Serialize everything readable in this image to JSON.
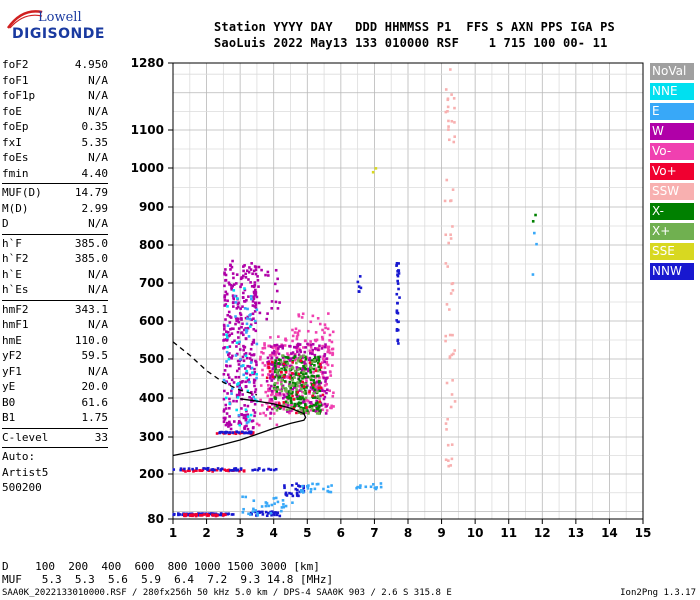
{
  "logo": {
    "line1": "Lowell",
    "line2": "DIGISONDE"
  },
  "header": {
    "line1": "Station YYYY DAY   DDD HHMMSS P1  FFS S AXN PPS IGA PS",
    "line2": "SaoLuis 2022 May13 133 010000 RSF    1 715 100 00- 11"
  },
  "params": [
    {
      "label": "foF2",
      "value": "4.950"
    },
    {
      "label": "foF1",
      "value": "N/A"
    },
    {
      "label": "foF1p",
      "value": "N/A"
    },
    {
      "label": "foE",
      "value": "N/A"
    },
    {
      "label": "foEp",
      "value": "0.35"
    },
    {
      "label": "fxI",
      "value": "5.35"
    },
    {
      "label": "foEs",
      "value": "N/A"
    },
    {
      "label": "fmin",
      "value": "4.40"
    },
    {
      "sep": true
    },
    {
      "label": "MUF(D)",
      "value": "14.79"
    },
    {
      "label": "M(D)",
      "value": "2.99"
    },
    {
      "label": "D",
      "value": "N/A"
    },
    {
      "sep": true
    },
    {
      "label": "h`F",
      "value": "385.0"
    },
    {
      "label": "h`F2",
      "value": "385.0"
    },
    {
      "label": "h`E",
      "value": "N/A"
    },
    {
      "label": "h`Es",
      "value": "N/A"
    },
    {
      "sep": true
    },
    {
      "label": "hmF2",
      "value": "343.1"
    },
    {
      "label": "hmF1",
      "value": "N/A"
    },
    {
      "label": "hmE",
      "value": "110.0"
    },
    {
      "label": "yF2",
      "value": "59.5"
    },
    {
      "label": "yF1",
      "value": "N/A"
    },
    {
      "label": "yE",
      "value": "20.0"
    },
    {
      "label": "B0",
      "value": "61.6"
    },
    {
      "label": "B1",
      "value": "1.75"
    },
    {
      "sep": true
    },
    {
      "label": "C-level",
      "value": "33"
    },
    {
      "sep": true
    },
    {
      "text": "Auto:"
    },
    {
      "text": "Artist5"
    },
    {
      "text": "500200"
    }
  ],
  "legend": [
    {
      "label": "NoVal",
      "color": "#a0a0a0"
    },
    {
      "label": "NNE",
      "color": "#00e0f0"
    },
    {
      "label": "E",
      "color": "#38a8f8"
    },
    {
      "label": "W",
      "color": "#b000a8"
    },
    {
      "label": "Vo-",
      "color": "#f040b0"
    },
    {
      "label": "Vo+",
      "color": "#f00030"
    },
    {
      "label": "SSW",
      "color": "#f8b0b0"
    },
    {
      "label": "X-",
      "color": "#008000"
    },
    {
      "label": "X+",
      "color": "#70b050"
    },
    {
      "label": "SSE",
      "color": "#d8d820"
    },
    {
      "label": "NNW",
      "color": "#1818d0"
    }
  ],
  "bottom": {
    "line1": "D    100  200  400  600  800 1000 1500 3000 [km]",
    "line2": "MUF   5.3  5.3  5.6  5.9  6.4  7.2  9.3 14.8 [MHz]"
  },
  "footer": {
    "left": "SAA0K_2022133010000.RSF / 280fx256h 50 kHz 5.0 km / DPS-4 SAA0K 903 / 2.6 S 315.8 E",
    "right": "Ion2Png 1.3.17"
  },
  "chart_data": {
    "type": "scatter",
    "x_ticks": [
      "1",
      "2",
      "3",
      "4",
      "5",
      "6",
      "7",
      "8",
      "9",
      "10",
      "11",
      "12",
      "13",
      "14",
      "15"
    ],
    "y_ticks": [
      "80",
      "200",
      "300",
      "400",
      "500",
      "600",
      "700",
      "800",
      "900",
      "1000",
      "1100",
      "1280"
    ],
    "xlim": [
      1,
      15
    ],
    "ylim": [
      80,
      1280
    ],
    "grid": true,
    "profile": {
      "x": [
        1.0,
        2.0,
        3.0,
        3.5,
        4.0,
        4.5,
        4.9,
        4.95,
        4.9,
        4.5,
        4.0,
        3.5,
        3.0
      ],
      "y": [
        250,
        268,
        292,
        307,
        322,
        335,
        343,
        350,
        360,
        374,
        385,
        392,
        398
      ]
    },
    "profile_upper": {
      "x": [
        1.0,
        1.5,
        2.0,
        2.5,
        3.0,
        3.5
      ],
      "y": [
        545,
        510,
        470,
        440,
        420,
        408
      ]
    },
    "clusters": [
      {
        "color": "#1818d0",
        "x": [
          1.0,
          2.8
        ],
        "y": [
          90,
          95
        ],
        "n": 70
      },
      {
        "color": "#f00030",
        "x": [
          1.2,
          2.6
        ],
        "y": [
          88,
          93
        ],
        "n": 35
      },
      {
        "color": "#1818d0",
        "x": [
          3.3,
          4.2
        ],
        "y": [
          88,
          100
        ],
        "n": 25
      },
      {
        "color": "#38a8f8",
        "x": [
          3.0,
          4.6
        ],
        "y": [
          90,
          140
        ],
        "n": 30
      },
      {
        "color": "#1818d0",
        "x": [
          4.3,
          4.9
        ],
        "y": [
          140,
          175
        ],
        "n": 25
      },
      {
        "color": "#38a8f8",
        "x": [
          4.8,
          5.8
        ],
        "y": [
          150,
          175
        ],
        "n": 20
      },
      {
        "color": "#f00030",
        "x": [
          1.0,
          3.2
        ],
        "y": [
          207,
          212
        ],
        "n": 30
      },
      {
        "color": "#1818d0",
        "x": [
          1.0,
          4.2
        ],
        "y": [
          210,
          216
        ],
        "n": 40
      },
      {
        "color": "#38a8f8",
        "x": [
          6.3,
          7.3
        ],
        "y": [
          160,
          175
        ],
        "n": 12
      },
      {
        "color": "#f00030",
        "x": [
          2.3,
          3.4
        ],
        "y": [
          308,
          312
        ],
        "n": 25
      },
      {
        "color": "#1818d0",
        "x": [
          2.3,
          3.4
        ],
        "y": [
          310,
          314
        ],
        "n": 25
      },
      {
        "color": "#b000a8",
        "x": [
          2.5,
          3.5
        ],
        "y": [
          320,
          760
        ],
        "n": 320
      },
      {
        "color": "#00e0f0",
        "x": [
          2.5,
          3.5
        ],
        "y": [
          330,
          700
        ],
        "n": 30
      },
      {
        "color": "#38a8f8",
        "x": [
          2.5,
          3.5
        ],
        "y": [
          330,
          700
        ],
        "n": 40
      },
      {
        "color": "#f040b0",
        "x": [
          3.5,
          4.1
        ],
        "y": [
          330,
          560
        ],
        "n": 40
      },
      {
        "color": "#f040b0",
        "x": [
          3.8,
          5.8
        ],
        "y": [
          360,
          560
        ],
        "n": 260
      },
      {
        "color": "#b000a8",
        "x": [
          3.8,
          5.6
        ],
        "y": [
          360,
          540
        ],
        "n": 200
      },
      {
        "color": "#008000",
        "x": [
          4.0,
          5.4
        ],
        "y": [
          360,
          510
        ],
        "n": 180
      },
      {
        "color": "#70b050",
        "x": [
          4.0,
          5.4
        ],
        "y": [
          360,
          510
        ],
        "n": 80
      },
      {
        "color": "#f00030",
        "x": [
          3.8,
          5.5
        ],
        "y": [
          360,
          500
        ],
        "n": 40
      },
      {
        "color": "#f040b0",
        "x": [
          4.5,
          5.8
        ],
        "y": [
          560,
          620
        ],
        "n": 25
      },
      {
        "color": "#b000a8",
        "x": [
          3.3,
          4.2
        ],
        "y": [
          600,
          750
        ],
        "n": 30
      },
      {
        "color": "#1818d0",
        "x": [
          7.65,
          7.75
        ],
        "y": [
          540,
          760
        ],
        "n": 30
      },
      {
        "color": "#1818d0",
        "x": [
          6.5,
          6.6
        ],
        "y": [
          660,
          730
        ],
        "n": 6
      },
      {
        "color": "#f8b0b0",
        "x": [
          9.1,
          9.4
        ],
        "y": [
          190,
          1270
        ],
        "n": 60
      },
      {
        "color": "#d8d820",
        "x": [
          6.95,
          7.05
        ],
        "y": [
          980,
          1000
        ],
        "n": 2
      },
      {
        "color": "#38a8f8",
        "x": [
          11.7,
          11.9
        ],
        "y": [
          600,
          880
        ],
        "n": 3
      },
      {
        "color": "#008000",
        "x": [
          11.7,
          11.9
        ],
        "y": [
          860,
          880
        ],
        "n": 2
      }
    ]
  }
}
